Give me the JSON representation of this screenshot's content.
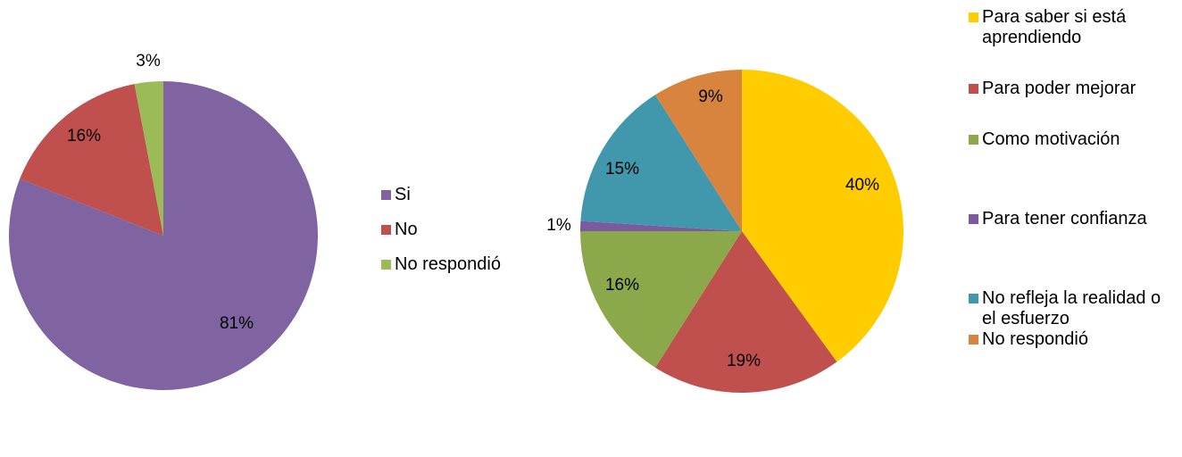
{
  "chart_data": [
    {
      "type": "pie",
      "categories": [
        "Si",
        "No",
        "No respondió"
      ],
      "values": [
        81,
        16,
        3
      ],
      "labels": [
        "81%",
        "16%",
        "3%"
      ],
      "colors": [
        "#8064a2",
        "#c0504d",
        "#9bbb59"
      ],
      "legend_position": "right"
    },
    {
      "type": "pie",
      "categories": [
        "Para saber si está aprendiendo",
        "Para poder mejorar",
        "Como motivación",
        "Para tener confianza",
        "No refleja la realidad o el esfuerzo",
        "No respondió"
      ],
      "values": [
        40,
        19,
        16,
        1,
        15,
        9
      ],
      "labels": [
        "40%",
        "19%",
        "16%",
        "1%",
        "15%",
        "9%"
      ],
      "colors": [
        "#ffcc00",
        "#c0504d",
        "#8ba84a",
        "#7b5aa0",
        "#4197ac",
        "#d8843f"
      ],
      "legend_position": "right"
    }
  ]
}
